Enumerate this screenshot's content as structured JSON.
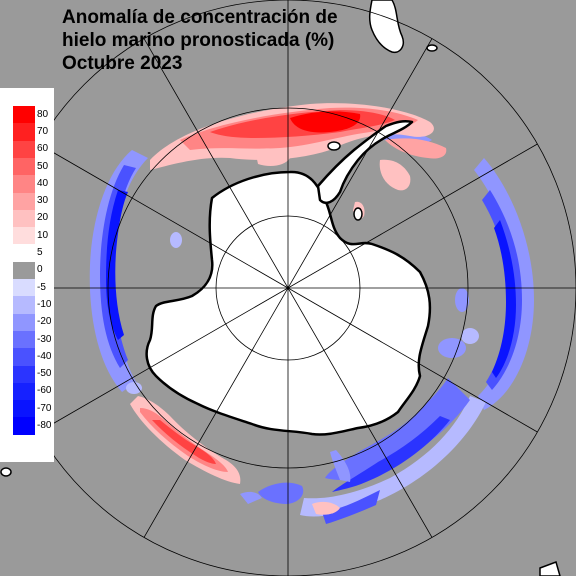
{
  "title": {
    "line1": "Anomalía de concentración de",
    "line2": "hielo marino pronosticada (%)",
    "line3": "Octubre 2023"
  },
  "legend": {
    "labels": [
      "80",
      "70",
      "60",
      "50",
      "40",
      "30",
      "20",
      "10",
      "5",
      "0",
      "-5",
      "-10",
      "-20",
      "-30",
      "-40",
      "-50",
      "-60",
      "-70",
      "-80"
    ],
    "colors": [
      "#ff0000",
      "#ff2020",
      "#ff4343",
      "#ff6464",
      "#ff8585",
      "#ffa3a3",
      "#ffc1c1",
      "#ffdddd",
      "#ffffff",
      "#9a9a9a",
      "#d9dcff",
      "#b6baff",
      "#9096ff",
      "#6a71ff",
      "#4a52ff",
      "#2b34ff",
      "#1621ff",
      "#0a14ff",
      "#0000ff"
    ]
  },
  "colors": {
    "background": "#9a9a9a",
    "land": "#ffffff",
    "coastline": "#000000",
    "positive_anomaly": "#ff0000",
    "negative_anomaly": "#0000ff"
  }
}
